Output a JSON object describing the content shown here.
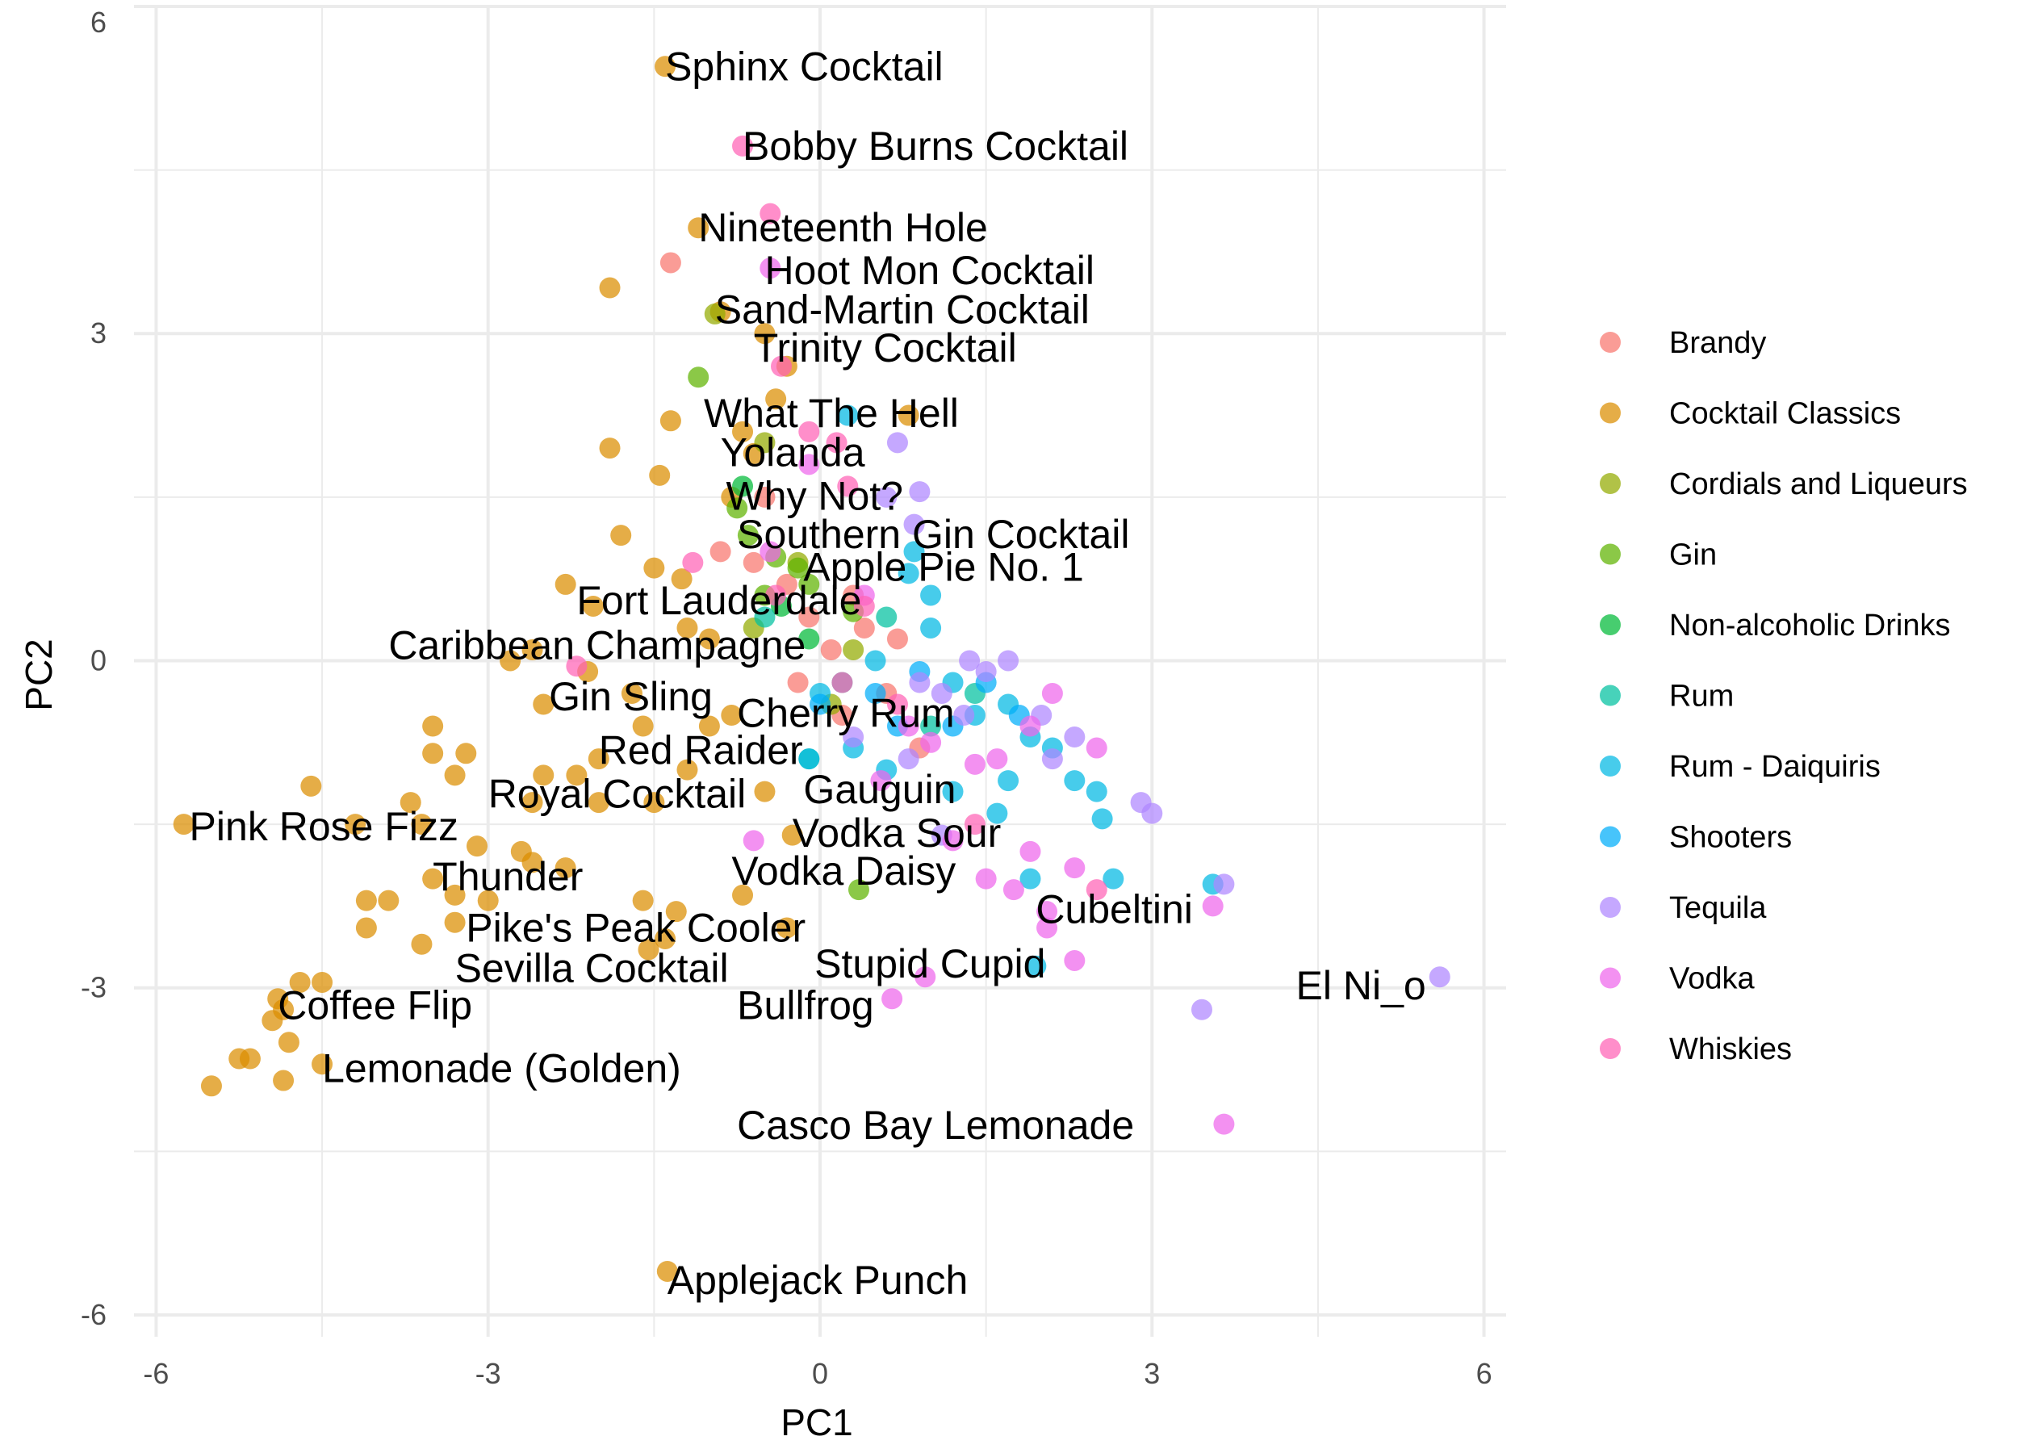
{
  "chart_data": {
    "type": "scatter",
    "xlabel": "PC1",
    "ylabel": "PC2",
    "xlim": [
      -6.2,
      6.2
    ],
    "ylim": [
      -6.2,
      6.0
    ],
    "x_ticks": [
      -6,
      -3,
      0,
      3,
      6
    ],
    "y_ticks": [
      -6,
      -3,
      0,
      3,
      6
    ],
    "x_tick_labels": [
      "-6",
      "-3",
      "0",
      "3",
      "6"
    ],
    "y_tick_labels": [
      "-6",
      "-3",
      "0",
      "3",
      "6"
    ],
    "grid": true,
    "legend_position": "right",
    "series": [
      {
        "name": "Brandy",
        "color": "#F8766D",
        "points": [
          [
            -1.35,
            3.65
          ],
          [
            -0.9,
            1.0
          ],
          [
            -0.5,
            1.5
          ],
          [
            -0.3,
            0.7
          ],
          [
            -0.1,
            0.4
          ],
          [
            0.1,
            0.1
          ],
          [
            0.4,
            0.3
          ],
          [
            0.6,
            -0.3
          ],
          [
            -0.6,
            0.9
          ],
          [
            0.2,
            -0.5
          ],
          [
            0.9,
            -0.8
          ],
          [
            -0.2,
            -0.2
          ],
          [
            0.7,
            0.2
          ],
          [
            0.3,
            0.6
          ]
        ]
      },
      {
        "name": "Cocktail Classics",
        "color": "#DB8E00",
        "points": [
          [
            -1.4,
            5.45
          ],
          [
            -1.1,
            3.97
          ],
          [
            -1.9,
            3.42
          ],
          [
            -0.9,
            3.2
          ],
          [
            -0.5,
            3.0
          ],
          [
            -0.3,
            2.7
          ],
          [
            -1.35,
            2.2
          ],
          [
            -1.9,
            1.95
          ],
          [
            -1.45,
            1.7
          ],
          [
            -1.8,
            1.15
          ],
          [
            -1.5,
            0.85
          ],
          [
            -2.3,
            0.7
          ],
          [
            -2.05,
            0.5
          ],
          [
            -2.6,
            0.1
          ],
          [
            -2.8,
            0.0
          ],
          [
            -2.5,
            -0.4
          ],
          [
            -2.1,
            -0.1
          ],
          [
            -1.7,
            -0.3
          ],
          [
            -2.0,
            -0.9
          ],
          [
            -3.5,
            -0.6
          ],
          [
            -3.5,
            -0.85
          ],
          [
            -3.2,
            -0.85
          ],
          [
            -3.3,
            -1.05
          ],
          [
            -2.5,
            -1.05
          ],
          [
            -2.2,
            -1.05
          ],
          [
            -1.5,
            -1.3
          ],
          [
            -5.75,
            -1.5
          ],
          [
            -4.6,
            -1.15
          ],
          [
            -4.2,
            -1.5
          ],
          [
            -3.7,
            -1.3
          ],
          [
            -3.6,
            -1.5
          ],
          [
            -3.1,
            -1.7
          ],
          [
            -2.7,
            -1.75
          ],
          [
            -2.6,
            -1.85
          ],
          [
            -2.3,
            -1.9
          ],
          [
            -3.5,
            -2.0
          ],
          [
            -3.3,
            -2.15
          ],
          [
            -3.0,
            -2.2
          ],
          [
            -4.1,
            -2.2
          ],
          [
            -3.9,
            -2.2
          ],
          [
            -3.3,
            -2.4
          ],
          [
            -4.1,
            -2.45
          ],
          [
            -3.6,
            -2.6
          ],
          [
            -1.6,
            -2.2
          ],
          [
            -1.3,
            -2.3
          ],
          [
            -1.55,
            -2.65
          ],
          [
            -1.4,
            -2.55
          ],
          [
            -0.3,
            -2.45
          ],
          [
            -4.7,
            -2.95
          ],
          [
            -4.5,
            -2.95
          ],
          [
            -4.9,
            -3.1
          ],
          [
            -4.85,
            -3.2
          ],
          [
            -4.95,
            -3.3
          ],
          [
            -4.8,
            -3.5
          ],
          [
            -5.25,
            -3.65
          ],
          [
            -5.15,
            -3.65
          ],
          [
            -5.5,
            -3.9
          ],
          [
            -4.85,
            -3.85
          ],
          [
            -4.5,
            -3.7
          ],
          [
            -1.38,
            -5.6
          ],
          [
            -0.5,
            -1.2
          ],
          [
            -0.25,
            -1.6
          ],
          [
            -0.7,
            -2.15
          ],
          [
            -1.0,
            0.2
          ],
          [
            -0.8,
            -0.5
          ],
          [
            -0.6,
            1.9
          ],
          [
            -0.4,
            2.4
          ],
          [
            -0.7,
            2.1
          ],
          [
            0.8,
            2.25
          ],
          [
            -0.8,
            1.5
          ],
          [
            -1.2,
            0.3
          ],
          [
            -1.0,
            -0.6
          ],
          [
            -1.2,
            -1.0
          ],
          [
            -1.6,
            -0.6
          ],
          [
            -2.0,
            -1.3
          ],
          [
            -2.6,
            -1.3
          ],
          [
            -1.25,
            0.75
          ]
        ]
      },
      {
        "name": "Cordials and Liqueurs",
        "color": "#93AA00",
        "points": [
          [
            -0.95,
            3.18
          ],
          [
            -0.5,
            2.0
          ],
          [
            -0.2,
            0.9
          ],
          [
            0.1,
            -0.4
          ],
          [
            -0.6,
            0.3
          ],
          [
            0.3,
            0.1
          ]
        ]
      },
      {
        "name": "Gin",
        "color": "#5EB300",
        "points": [
          [
            -1.1,
            2.6
          ],
          [
            -0.75,
            1.4
          ],
          [
            -0.65,
            1.15
          ],
          [
            -0.4,
            0.95
          ],
          [
            -0.2,
            0.85
          ],
          [
            0.3,
            0.45
          ],
          [
            0.35,
            -2.1
          ],
          [
            -0.5,
            0.6
          ],
          [
            -0.1,
            0.7
          ]
        ]
      },
      {
        "name": "Non-alcoholic Drinks",
        "color": "#00BA38",
        "points": [
          [
            -0.7,
            1.6
          ],
          [
            -0.35,
            0.5
          ],
          [
            -0.1,
            0.2
          ]
        ]
      },
      {
        "name": "Rum",
        "color": "#00C19F",
        "points": [
          [
            -0.5,
            0.4
          ],
          [
            0.2,
            -0.2
          ],
          [
            0.6,
            0.4
          ],
          [
            1.0,
            -0.6
          ],
          [
            1.4,
            -0.3
          ],
          [
            -0.1,
            -0.9
          ]
        ]
      },
      {
        "name": "Rum - Daiquiris",
        "color": "#00B9E3",
        "points": [
          [
            0.25,
            2.25
          ],
          [
            0.85,
            1.0
          ],
          [
            1.0,
            0.6
          ],
          [
            1.0,
            0.3
          ],
          [
            0.8,
            0.8
          ],
          [
            1.2,
            -0.2
          ],
          [
            1.4,
            -0.5
          ],
          [
            1.7,
            -0.4
          ],
          [
            1.9,
            -0.7
          ],
          [
            2.1,
            -0.8
          ],
          [
            2.3,
            -1.1
          ],
          [
            2.5,
            -1.2
          ],
          [
            2.55,
            -1.45
          ],
          [
            2.65,
            -2.0
          ],
          [
            1.9,
            -2.0
          ],
          [
            1.95,
            -2.8
          ],
          [
            3.55,
            -2.05
          ],
          [
            1.7,
            -1.1
          ],
          [
            1.6,
            -1.4
          ],
          [
            0.6,
            -1.0
          ],
          [
            1.2,
            -1.2
          ],
          [
            0.3,
            -0.8
          ],
          [
            -0.1,
            -0.9
          ],
          [
            0.0,
            -0.3
          ],
          [
            0.5,
            0.0
          ]
        ]
      },
      {
        "name": "Shooters",
        "color": "#00ADFA",
        "points": [
          [
            0.0,
            -0.4
          ],
          [
            0.5,
            -0.3
          ],
          [
            0.9,
            -0.1
          ],
          [
            1.2,
            -0.6
          ],
          [
            1.5,
            -0.2
          ],
          [
            1.8,
            -0.5
          ],
          [
            0.7,
            -0.6
          ]
        ]
      },
      {
        "name": "Tequila",
        "color": "#AE87FF",
        "points": [
          [
            0.7,
            2.0
          ],
          [
            0.6,
            1.5
          ],
          [
            0.9,
            1.55
          ],
          [
            0.85,
            1.25
          ],
          [
            0.9,
            -0.2
          ],
          [
            1.1,
            -0.3
          ],
          [
            1.3,
            -0.5
          ],
          [
            1.5,
            -0.1
          ],
          [
            1.7,
            0.0
          ],
          [
            2.0,
            -0.5
          ],
          [
            2.1,
            -0.9
          ],
          [
            2.3,
            -0.7
          ],
          [
            2.9,
            -1.3
          ],
          [
            3.0,
            -1.4
          ],
          [
            3.65,
            -2.05
          ],
          [
            5.6,
            -2.9
          ],
          [
            3.45,
            -3.2
          ],
          [
            1.1,
            -1.6
          ],
          [
            0.8,
            -0.9
          ],
          [
            1.35,
            0.0
          ],
          [
            0.3,
            -0.7
          ]
        ]
      },
      {
        "name": "Vodka",
        "color": "#EF67EB",
        "points": [
          [
            -0.45,
            3.6
          ],
          [
            -0.1,
            1.8
          ],
          [
            0.4,
            0.6
          ],
          [
            1.0,
            -0.75
          ],
          [
            1.4,
            -0.95
          ],
          [
            1.6,
            -0.9
          ],
          [
            1.9,
            -0.6
          ],
          [
            2.1,
            -0.3
          ],
          [
            2.5,
            -0.8
          ],
          [
            2.3,
            -1.9
          ],
          [
            1.5,
            -2.0
          ],
          [
            1.75,
            -2.1
          ],
          [
            2.05,
            -2.3
          ],
          [
            2.05,
            -2.45
          ],
          [
            2.3,
            -2.75
          ],
          [
            3.55,
            -2.25
          ],
          [
            3.65,
            -4.25
          ],
          [
            0.95,
            -2.9
          ],
          [
            0.65,
            -3.1
          ],
          [
            -0.6,
            -1.65
          ],
          [
            1.2,
            -1.65
          ],
          [
            1.9,
            -1.75
          ],
          [
            0.8,
            -0.6
          ],
          [
            0.55,
            -1.1
          ],
          [
            -0.45,
            1.0
          ]
        ]
      },
      {
        "name": "Whiskies",
        "color": "#FF63B6",
        "points": [
          [
            -0.45,
            4.1
          ],
          [
            -0.7,
            4.72
          ],
          [
            -0.35,
            2.7
          ],
          [
            0.15,
            2.0
          ],
          [
            0.25,
            1.6
          ],
          [
            -0.1,
            2.1
          ],
          [
            -2.2,
            -0.05
          ],
          [
            -1.15,
            0.9
          ],
          [
            -0.4,
            0.6
          ],
          [
            0.4,
            0.5
          ],
          [
            0.7,
            -0.4
          ],
          [
            2.5,
            -2.1
          ],
          [
            1.4,
            -1.5
          ],
          [
            0.2,
            -0.2
          ]
        ]
      }
    ],
    "labels": [
      {
        "text": "Sphinx Cocktail",
        "x": -1.4,
        "y": 5.45
      },
      {
        "text": "Bobby Burns Cocktail",
        "x": -0.7,
        "y": 4.72
      },
      {
        "text": "Nineteenth Hole",
        "x": -1.1,
        "y": 3.97
      },
      {
        "text": "Hoot Mon Cocktail",
        "x": -0.5,
        "y": 3.58
      },
      {
        "text": "Sand-Martin Cocktail",
        "x": -0.95,
        "y": 3.22
      },
      {
        "text": "Trinity Cocktail",
        "x": -0.6,
        "y": 2.87
      },
      {
        "text": "What The Hell",
        "x": -1.05,
        "y": 2.27
      },
      {
        "text": "Yolanda",
        "x": -0.9,
        "y": 1.91
      },
      {
        "text": "Why Not?",
        "x": -0.85,
        "y": 1.51
      },
      {
        "text": "Southern Gin Cocktail",
        "x": -0.75,
        "y": 1.16
      },
      {
        "text": "Apple Pie No. 1",
        "x": -0.15,
        "y": 0.86
      },
      {
        "text": "Fort Lauderdale",
        "x": -2.2,
        "y": 0.55
      },
      {
        "text": "Caribbean Champagne",
        "x": -3.9,
        "y": 0.14
      },
      {
        "text": "Gin Sling",
        "x": -2.45,
        "y": -0.33
      },
      {
        "text": "Cherry Rum",
        "x": -0.75,
        "y": -0.48
      },
      {
        "text": "Red Raider",
        "x": -2.0,
        "y": -0.82
      },
      {
        "text": "Royal Cocktail",
        "x": -3.0,
        "y": -1.22
      },
      {
        "text": "Gauguin",
        "x": -0.15,
        "y": -1.18
      },
      {
        "text": "Pink Rose Fizz",
        "x": -5.7,
        "y": -1.52
      },
      {
        "text": "Vodka Sour",
        "x": -0.25,
        "y": -1.58
      },
      {
        "text": "Thunder",
        "x": -3.5,
        "y": -1.98
      },
      {
        "text": "Vodka Daisy",
        "x": -0.8,
        "y": -1.93
      },
      {
        "text": "Cubeltini",
        "x": 1.95,
        "y": -2.28
      },
      {
        "text": "Pike's Peak Cooler",
        "x": -3.2,
        "y": -2.45
      },
      {
        "text": "Sevilla Cocktail",
        "x": -3.3,
        "y": -2.82
      },
      {
        "text": "Stupid Cupid",
        "x": -0.05,
        "y": -2.78
      },
      {
        "text": "El Ni_o",
        "x": 4.3,
        "y": -2.98
      },
      {
        "text": "Coffee Flip",
        "x": -4.9,
        "y": -3.16
      },
      {
        "text": "Bullfrog",
        "x": -0.75,
        "y": -3.16
      },
      {
        "text": "Lemonade (Golden)",
        "x": -4.5,
        "y": -3.74
      },
      {
        "text": "Casco Bay Lemonade",
        "x": -0.75,
        "y": -4.26
      },
      {
        "text": "Applejack Punch",
        "x": -1.38,
        "y": -5.68
      }
    ]
  }
}
